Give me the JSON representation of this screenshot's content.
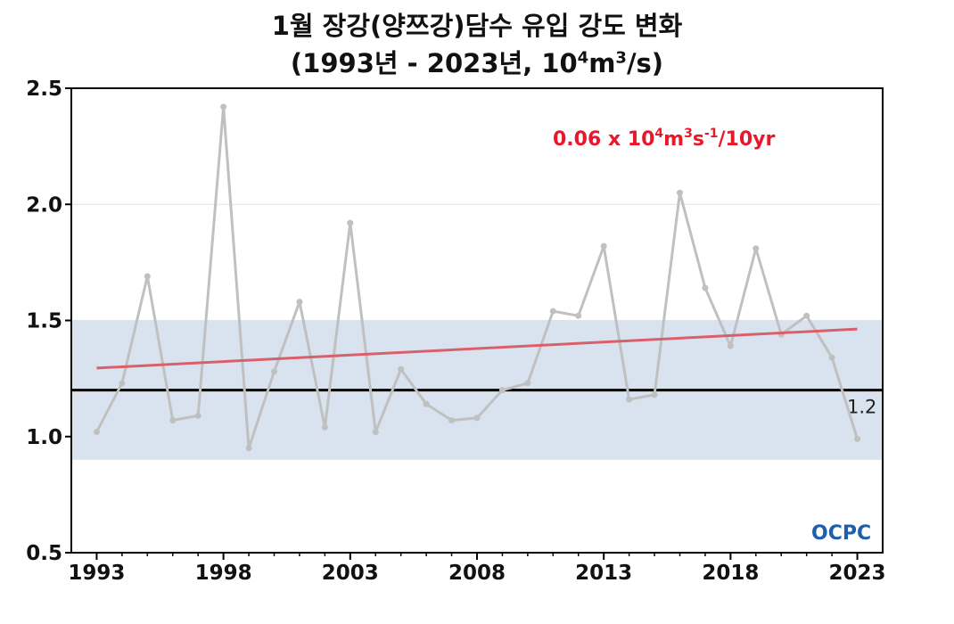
{
  "title": {
    "line1": "1월 장강(양쯔강)담수 유입 강도 변화",
    "line2_prefix": "(1993년 - 2023년, 10",
    "line2_sup1": "4",
    "line2_mid": "m",
    "line2_sup2": "3",
    "line2_suffix": "/s)"
  },
  "logo": {
    "text": "OCPC"
  },
  "chart_data": {
    "type": "line",
    "x": [
      1993,
      1994,
      1995,
      1996,
      1997,
      1998,
      1999,
      2000,
      2001,
      2002,
      2003,
      2004,
      2005,
      2006,
      2007,
      2008,
      2009,
      2010,
      2011,
      2012,
      2013,
      2014,
      2015,
      2016,
      2017,
      2018,
      2019,
      2020,
      2021,
      2022,
      2023
    ],
    "series": [
      {
        "values": [
          1.02,
          1.23,
          1.69,
          1.07,
          1.09,
          2.42,
          0.95,
          1.28,
          1.58,
          1.04,
          1.92,
          1.02,
          1.29,
          1.14,
          1.07,
          1.08,
          1.2,
          1.23,
          1.54,
          1.52,
          1.82,
          1.16,
          1.18,
          2.05,
          1.64,
          1.39,
          1.81,
          1.44,
          1.52,
          1.34,
          0.99
        ],
        "color": "#c0c0c0"
      }
    ],
    "trend": {
      "start": [
        1993,
        1.295
      ],
      "end": [
        2023,
        1.463
      ],
      "label_main": "0.06 x 10",
      "label_sup1": "4",
      "label_m": "m",
      "label_sup2": "3",
      "label_s": "s",
      "label_sup3": "-1",
      "label_tail": "/10yr",
      "color": "#d9606a"
    },
    "reference_line": {
      "value": 1.2,
      "label": "1.2",
      "color": "#000000"
    },
    "band": {
      "low": 0.9,
      "high": 1.5,
      "color": "#d8e3ef"
    },
    "xlim": [
      1992,
      2024
    ],
    "ylim": [
      0.5,
      2.5
    ],
    "xticks": [
      1993,
      1998,
      2003,
      2008,
      2013,
      2018,
      2023
    ],
    "yticks": [
      "0.5",
      "1.0",
      "1.5",
      "2.0",
      "2.5"
    ],
    "grid": true
  }
}
